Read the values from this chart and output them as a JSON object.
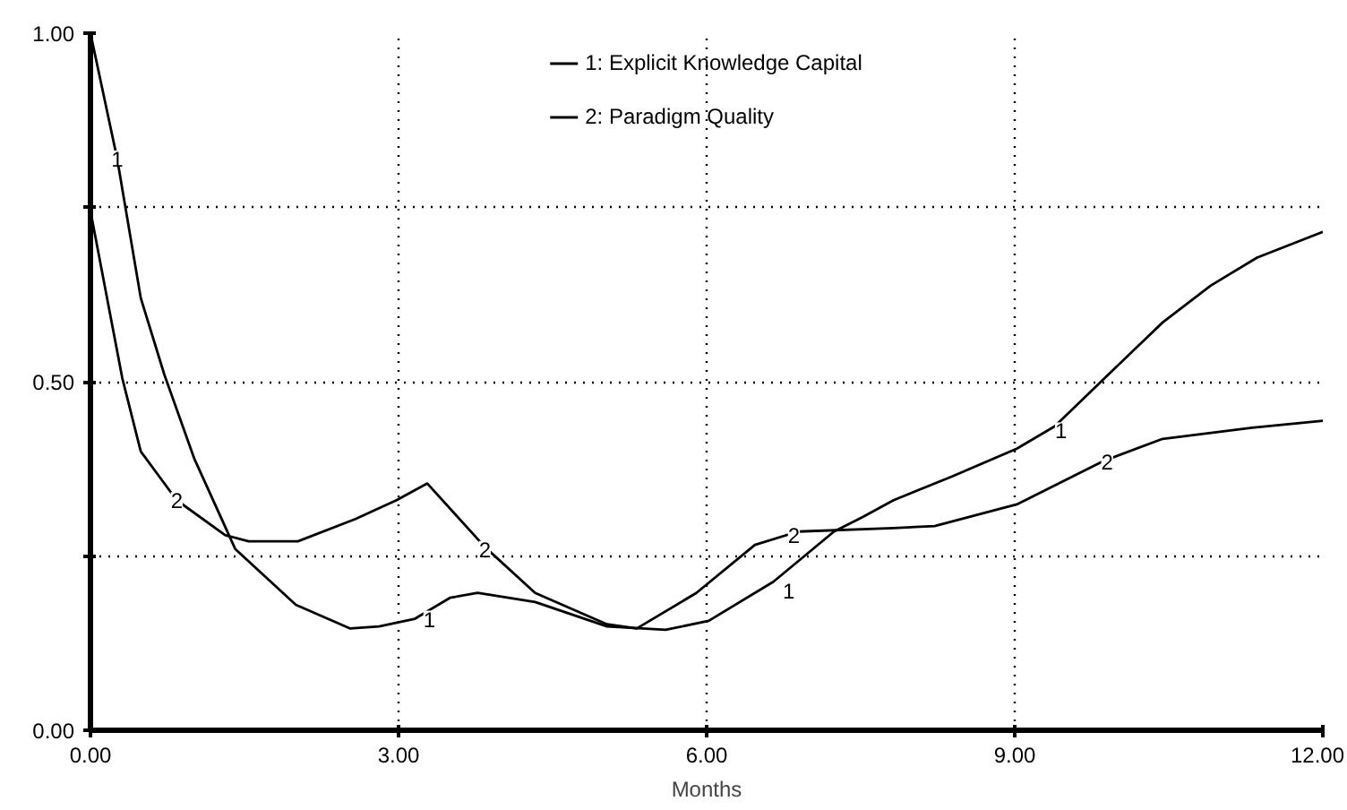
{
  "chart_data": {
    "type": "line",
    "xlabel": "Months",
    "xlim": [
      0,
      12
    ],
    "ylim": [
      0,
      1
    ],
    "xticks": [
      {
        "value": 0,
        "label": "0.00"
      },
      {
        "value": 3,
        "label": "3.00"
      },
      {
        "value": 6,
        "label": "6.00"
      },
      {
        "value": 9,
        "label": "9.00"
      },
      {
        "value": 12,
        "label": "12.00"
      }
    ],
    "yticks": [
      {
        "value": 0,
        "label": "0.00"
      },
      {
        "value": 0.25,
        "label": null
      },
      {
        "value": 0.5,
        "label": "0.50"
      },
      {
        "value": 0.75,
        "label": null
      },
      {
        "value": 1,
        "label": "1.00"
      }
    ],
    "grid": true,
    "legend": "top",
    "line_style": "solid",
    "series": [
      {
        "name": "1: Explicit Knowledge Capital",
        "color": "#000000",
        "x": [
          0,
          0.26,
          0.49,
          0.72,
          1.01,
          1.41,
          2.0,
          2.53,
          2.81,
          3.16,
          3.5,
          3.77,
          4.33,
          5.03,
          5.6,
          6.02,
          6.65,
          7.24,
          7.52,
          7.82,
          8.39,
          9.02,
          9.39,
          9.86,
          10.44,
          10.91,
          11.36,
          12
        ],
        "values": [
          1.0,
          0.82,
          0.62,
          0.51,
          0.39,
          0.26,
          0.18,
          0.146,
          0.149,
          0.16,
          0.19,
          0.197,
          0.184,
          0.149,
          0.144,
          0.157,
          0.213,
          0.285,
          0.306,
          0.33,
          0.364,
          0.404,
          0.436,
          0.503,
          0.585,
          0.638,
          0.678,
          0.715
        ]
      },
      {
        "name": "2: Paradigm Quality",
        "color": "#000000",
        "x": [
          0,
          0.31,
          0.49,
          0.84,
          1.31,
          1.54,
          2.02,
          2.58,
          2.98,
          3.28,
          3.84,
          4.33,
          5.03,
          5.32,
          5.9,
          6.47,
          6.89,
          7.82,
          8.22,
          9.02,
          9.86,
          10.44,
          11.31,
          12
        ],
        "values": [
          0.745,
          0.505,
          0.4,
          0.33,
          0.28,
          0.271,
          0.271,
          0.303,
          0.33,
          0.354,
          0.263,
          0.197,
          0.152,
          0.146,
          0.197,
          0.266,
          0.285,
          0.29,
          0.293,
          0.324,
          0.386,
          0.418,
          0.434,
          0.444
        ]
      }
    ],
    "annotations": [
      {
        "text": "1",
        "x": 0.26,
        "y": 0.82
      },
      {
        "text": "1",
        "x": 3.3,
        "y": 0.16
      },
      {
        "text": "1",
        "x": 6.8,
        "y": 0.2
      },
      {
        "text": "1",
        "x": 9.45,
        "y": 0.43
      },
      {
        "text": "2",
        "x": 0.84,
        "y": 0.33
      },
      {
        "text": "2",
        "x": 3.84,
        "y": 0.26
      },
      {
        "text": "2",
        "x": 6.85,
        "y": 0.28
      },
      {
        "text": "2",
        "x": 9.9,
        "y": 0.385
      }
    ]
  }
}
